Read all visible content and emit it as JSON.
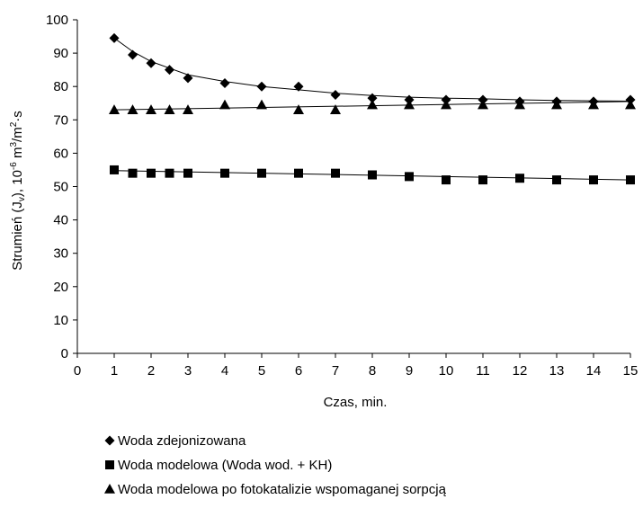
{
  "chart_data": {
    "type": "scatter",
    "x_axis": {
      "label": "Czas, min.",
      "range": [
        0,
        15
      ],
      "ticks": [
        0,
        1,
        2,
        3,
        4,
        5,
        6,
        7,
        8,
        9,
        10,
        11,
        12,
        13,
        14,
        15
      ]
    },
    "y_axis": {
      "label_prefix": "Strumień (J",
      "label_sub": "v",
      "label_mid": "), 10",
      "label_sup1": "-6",
      "label_unit1": " m",
      "label_sup2": "3",
      "label_unit2": "/m",
      "label_sup3": "2",
      "label_unit3": "·s",
      "range": [
        0,
        100
      ],
      "ticks": [
        0,
        10,
        20,
        30,
        40,
        50,
        60,
        70,
        80,
        90,
        100
      ]
    },
    "grid": false,
    "legend_position": "bottom",
    "series": [
      {
        "name": "Woda zdejonizowana",
        "marker": "diamond",
        "color": "#000000",
        "x": [
          1,
          1.5,
          2,
          2.5,
          3,
          4,
          5,
          6,
          7,
          8,
          9,
          10,
          11,
          12,
          13,
          14,
          15
        ],
        "y": [
          94.5,
          89.5,
          87,
          85,
          82.5,
          81,
          80,
          80,
          77.5,
          76.5,
          76,
          76,
          76,
          75.5,
          75.5,
          75.5,
          76
        ],
        "trend": [
          [
            1,
            94.5
          ],
          [
            1.5,
            90.5
          ],
          [
            2,
            87.5
          ],
          [
            2.5,
            85.5
          ],
          [
            3,
            83.5
          ],
          [
            4,
            81.5
          ],
          [
            5,
            80
          ],
          [
            6,
            79
          ],
          [
            7,
            78
          ],
          [
            8,
            77.3
          ],
          [
            9,
            76.8
          ],
          [
            10,
            76.5
          ],
          [
            11,
            76.3
          ],
          [
            12,
            76
          ],
          [
            13,
            75.8
          ],
          [
            14,
            75.7
          ],
          [
            15,
            75.6
          ]
        ]
      },
      {
        "name": "Woda modelowa (Woda wod. + KH)",
        "marker": "square",
        "color": "#000000",
        "x": [
          1,
          1.5,
          2,
          2.5,
          3,
          4,
          5,
          6,
          7,
          8,
          9,
          10,
          11,
          12,
          13,
          14,
          15
        ],
        "y": [
          55,
          54,
          54,
          54,
          54,
          54,
          54,
          54,
          54,
          53.5,
          53,
          52,
          52,
          52.5,
          52,
          52,
          52
        ],
        "trend": [
          [
            1,
            54.8
          ],
          [
            15,
            52
          ]
        ]
      },
      {
        "name": "Woda modelowa po fotokatalizie wspomaganej sorpcją",
        "marker": "triangle",
        "color": "#000000",
        "x": [
          1,
          1.5,
          2,
          2.5,
          3,
          4,
          5,
          6,
          7,
          8,
          9,
          10,
          11,
          12,
          13,
          14,
          15
        ],
        "y": [
          73,
          73,
          73,
          73,
          73,
          74.5,
          74.5,
          73,
          73,
          74.5,
          74.5,
          74.5,
          74.5,
          74.5,
          74.5,
          74.5,
          74.5
        ],
        "trend": [
          [
            1,
            73
          ],
          [
            15,
            75.5
          ]
        ]
      }
    ]
  }
}
